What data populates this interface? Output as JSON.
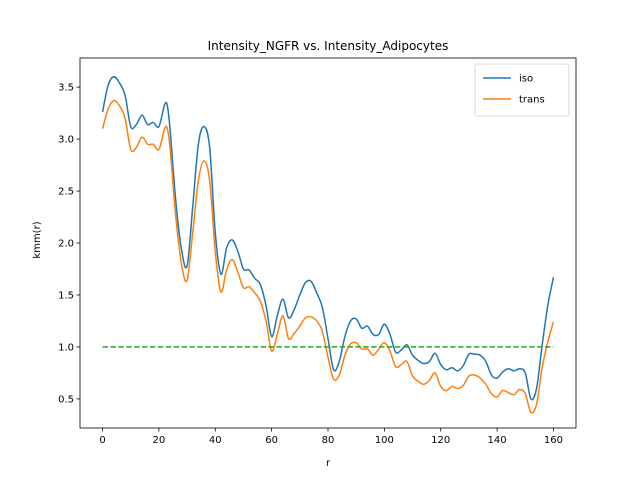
{
  "chart_data": {
    "type": "line",
    "title": "Intensity_NGFR vs. Intensity_Adipocytes",
    "xlabel": "r",
    "ylabel": "kmm(r)",
    "xlim": [
      -8,
      168
    ],
    "ylim": [
      0.22,
      3.78
    ],
    "xticks": [
      "0",
      "20",
      "40",
      "60",
      "80",
      "100",
      "120",
      "140",
      "160"
    ],
    "yticks": [
      "0.5",
      "1.0",
      "1.5",
      "2.0",
      "2.5",
      "3.0",
      "3.5"
    ],
    "legend_position": "top-right",
    "grid": false,
    "series": [
      {
        "name": "iso",
        "color": "#1f77b4",
        "style": "solid",
        "x": [
          0,
          2,
          4,
          6,
          8,
          10,
          12,
          14,
          16,
          18,
          20,
          22,
          23,
          24,
          26,
          28,
          30,
          32,
          34,
          36,
          38,
          40,
          42,
          44,
          46,
          48,
          50,
          52,
          54,
          56,
          58,
          60,
          62,
          64,
          66,
          68,
          70,
          72,
          74,
          76,
          78,
          80,
          82,
          84,
          86,
          88,
          90,
          92,
          94,
          96,
          98,
          100,
          102,
          104,
          106,
          108,
          110,
          112,
          114,
          116,
          118,
          120,
          122,
          124,
          126,
          128,
          130,
          132,
          134,
          136,
          138,
          140,
          142,
          144,
          146,
          148,
          150,
          152,
          154,
          156,
          158,
          160
        ],
        "y": [
          3.26,
          3.52,
          3.6,
          3.54,
          3.42,
          3.12,
          3.14,
          3.23,
          3.14,
          3.16,
          3.12,
          3.33,
          3.32,
          3.08,
          2.4,
          1.94,
          1.78,
          2.35,
          2.95,
          3.12,
          2.92,
          2.1,
          1.7,
          1.95,
          2.03,
          1.92,
          1.75,
          1.74,
          1.66,
          1.6,
          1.4,
          1.1,
          1.3,
          1.46,
          1.28,
          1.36,
          1.5,
          1.62,
          1.63,
          1.52,
          1.38,
          1.08,
          0.78,
          0.86,
          1.1,
          1.25,
          1.27,
          1.18,
          1.2,
          1.12,
          1.12,
          1.22,
          1.12,
          0.95,
          0.97,
          1.02,
          0.92,
          0.87,
          0.84,
          0.86,
          0.94,
          0.83,
          0.78,
          0.8,
          0.77,
          0.82,
          0.93,
          0.93,
          0.92,
          0.86,
          0.73,
          0.7,
          0.76,
          0.79,
          0.77,
          0.79,
          0.75,
          0.5,
          0.6,
          1.02,
          1.4,
          1.67
        ]
      },
      {
        "name": "trans",
        "color": "#ff7f0e",
        "style": "solid",
        "x": [
          0,
          2,
          4,
          6,
          8,
          10,
          12,
          14,
          16,
          18,
          20,
          22,
          23,
          24,
          26,
          28,
          30,
          32,
          34,
          36,
          38,
          40,
          42,
          44,
          46,
          48,
          50,
          52,
          54,
          56,
          58,
          60,
          62,
          64,
          66,
          68,
          70,
          72,
          74,
          76,
          78,
          80,
          82,
          84,
          86,
          88,
          90,
          92,
          94,
          96,
          98,
          100,
          102,
          104,
          106,
          108,
          110,
          112,
          114,
          116,
          118,
          120,
          122,
          124,
          126,
          128,
          130,
          132,
          134,
          136,
          138,
          140,
          142,
          144,
          146,
          148,
          150,
          152,
          154,
          156,
          158,
          160
        ],
        "y": [
          3.1,
          3.29,
          3.37,
          3.32,
          3.2,
          2.9,
          2.92,
          3.02,
          2.95,
          2.95,
          2.9,
          3.1,
          3.1,
          2.9,
          2.25,
          1.8,
          1.64,
          2.1,
          2.6,
          2.79,
          2.6,
          1.92,
          1.53,
          1.74,
          1.84,
          1.72,
          1.57,
          1.58,
          1.52,
          1.44,
          1.25,
          0.96,
          1.12,
          1.3,
          1.08,
          1.13,
          1.2,
          1.28,
          1.29,
          1.25,
          1.15,
          0.9,
          0.69,
          0.73,
          0.92,
          1.03,
          1.04,
          0.98,
          0.98,
          0.92,
          0.98,
          1.04,
          0.96,
          0.81,
          0.83,
          0.86,
          0.72,
          0.67,
          0.64,
          0.68,
          0.75,
          0.62,
          0.58,
          0.62,
          0.6,
          0.63,
          0.72,
          0.73,
          0.7,
          0.64,
          0.55,
          0.52,
          0.58,
          0.56,
          0.54,
          0.59,
          0.55,
          0.37,
          0.45,
          0.8,
          1.05,
          1.24
        ]
      },
      {
        "name": "",
        "color": "#2ca02c",
        "style": "dashed",
        "x": [
          0,
          160
        ],
        "y": [
          1.0,
          1.0
        ]
      }
    ]
  }
}
